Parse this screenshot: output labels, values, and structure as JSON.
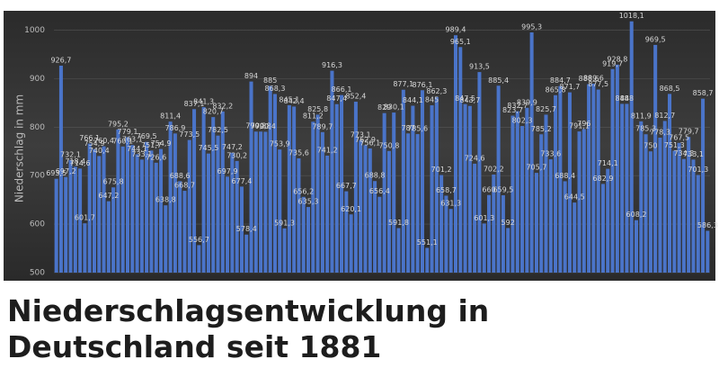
{
  "chart_data": {
    "type": "bar",
    "title": "Niederschlagsentwicklung in Deutschland seit 1881",
    "y_label": "Niederschlag in mm",
    "color": "#4a74c9",
    "ylim": [
      500,
      1025
    ],
    "yticks": [
      500,
      600,
      700,
      800,
      900,
      1000
    ],
    "grid": true,
    "values": [
      693.5,
      926.7,
      697.2,
      732.1,
      718.4,
      714.6,
      601.7,
      766.1,
      754.9,
      740.4,
      760.4,
      647.2,
      675.8,
      795.2,
      760.1,
      779.1,
      763.1,
      744.1,
      733.1,
      769.5,
      751.7,
      726.6,
      754.9,
      638.8,
      811.4,
      786.9,
      688.6,
      668.7,
      773.5,
      837.1,
      556.7,
      841.3,
      745.5,
      820.7,
      782.5,
      832.2,
      697.9,
      747.2,
      730.2,
      677.4,
      578.4,
      894,
      790.8,
      790.8,
      790.4,
      885,
      868.3,
      753.9,
      591.3,
      845.1,
      842.4,
      735.6,
      656.2,
      635.3,
      811.2,
      825.8,
      789.7,
      741.2,
      916.3,
      847.4,
      866.1,
      667.7,
      620.1,
      852.4,
      773.1,
      762.9,
      756.1,
      688.8,
      656.4,
      829,
      750.8,
      830.1,
      591.8,
      877.1,
      787,
      844.1,
      785.6,
      876.1,
      551.1,
      845,
      862.3,
      701.2,
      658.7,
      631.3,
      989.4,
      965.1,
      847.5,
      843.7,
      724.6,
      913.5,
      601.3,
      660,
      702.2,
      885.4,
      659.5,
      592,
      823.7,
      832.7,
      802.3,
      839.9,
      995.3,
      705.7,
      785.2,
      825.7,
      733.6,
      865.8,
      884.7,
      688.4,
      871.7,
      644.5,
      791.1,
      796,
      888.6,
      889.6,
      877.5,
      682.9,
      714.1,
      919.7,
      928.8,
      848,
      848,
      1018.1,
      608.2,
      811.9,
      785.3,
      750,
      969.5,
      778.3,
      812.7,
      868.5,
      751.3,
      767.5,
      734.3,
      779.7,
      733.1,
      701.3,
      858.7,
      586.3
    ],
    "value_labels": [
      "693,5",
      "926,7",
      "697,2",
      "732,1",
      "718,4",
      "714,6",
      "601,7",
      "766,1",
      "754,9",
      "740,4",
      "760,4",
      "647,2",
      "675,8",
      "795,2",
      "760,1",
      "779,1",
      "763,1",
      "744,1",
      "733,1",
      "769,5",
      "751,7",
      "726,6",
      "754,9",
      "638,8",
      "811,4",
      "786,9",
      "688,6",
      "668,7",
      "773,5",
      "837,1",
      "556,7",
      "841,3",
      "745,5",
      "820,7",
      "782,5",
      "832,2",
      "697,9",
      "747,2",
      "730,2",
      "677,4",
      "578,4",
      "894",
      "790,8",
      "790,8",
      "790,4",
      "885",
      "868,3",
      "753,9",
      "591,3",
      "845,1",
      "842,4",
      "735,6",
      "656,2",
      "635,3",
      "811,2",
      "825,8",
      "789,7",
      "741,2",
      "916,3",
      "847,4",
      "866,1",
      "667,7",
      "620,1",
      "852,4",
      "773,1",
      "762,9",
      "756,1",
      "688,8",
      "656,4",
      "829",
      "750,8",
      "830,1",
      "591,8",
      "877,1",
      "787",
      "844,1",
      "785,6",
      "876,1",
      "551,1",
      "845",
      "862,3",
      "701,2",
      "658,7",
      "631,3",
      "989,4",
      "965,1",
      "847,5",
      "843,7",
      "724,6",
      "913,5",
      "601,3",
      "660",
      "702,2",
      "885,4",
      "659,5",
      "592",
      "823,7",
      "832,7",
      "802,3",
      "839,9",
      "995,3",
      "705,7",
      "785,2",
      "825,7",
      "733,6",
      "865,8",
      "884,7",
      "688,4",
      "871,7",
      "644,5",
      "791,1",
      "796",
      "888,6",
      "889,6",
      "877,5",
      "682,9",
      "714,1",
      "919,7",
      "928,8",
      "848",
      "848",
      "1018,1",
      "608,2",
      "811,9",
      "785,3",
      "750",
      "969,5",
      "778,3",
      "812,7",
      "868,5",
      "751,3",
      "767,5",
      "734,3",
      "779,7",
      "733,1",
      "701,3",
      "858,7",
      "586,3"
    ]
  }
}
